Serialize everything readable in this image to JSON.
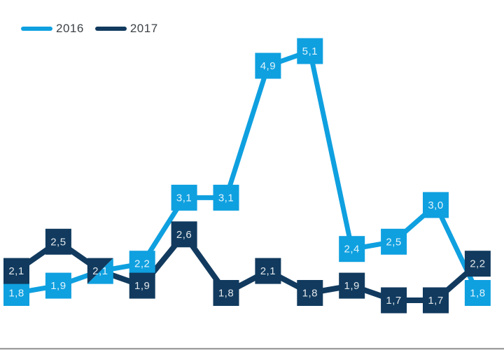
{
  "colors": {
    "series_2016": "#0FA0E0",
    "series_2017": "#113A5E",
    "point_label_text": "#FFFFFF",
    "legend_text": "#3D4247",
    "baseline": "#9F9F9F",
    "background": "#FFFFFF"
  },
  "legend": {
    "items": [
      {
        "label": "2016",
        "color": "#0FA0E0"
      },
      {
        "label": "2017",
        "color": "#113A5E"
      }
    ]
  },
  "chart_data": {
    "type": "line",
    "title": "",
    "xlabel": "",
    "ylabel": "",
    "grid": false,
    "x_axis_labels_visible": false,
    "y_axis_visible": false,
    "legend_position": "top-left",
    "num_points": 12,
    "decimal_separator": ",",
    "series": [
      {
        "name": "2016",
        "color": "#0FA0E0",
        "values": [
          1.8,
          1.9,
          2.1,
          2.2,
          3.1,
          3.1,
          4.9,
          5.1,
          2.4,
          2.5,
          3.0,
          1.8
        ],
        "labels": [
          "1,8",
          "1,9",
          "2,1",
          "2,2",
          "3,1",
          "3,1",
          "4,9",
          "5,1",
          "2,4",
          "2,5",
          "3,0",
          "1,8"
        ]
      },
      {
        "name": "2017",
        "color": "#113A5E",
        "values": [
          2.1,
          2.5,
          2.1,
          1.9,
          2.6,
          1.8,
          2.1,
          1.8,
          1.9,
          1.7,
          1.7,
          2.2
        ],
        "labels": [
          "2,1",
          "2,5",
          "2,1",
          "1,9",
          "2,6",
          "1,8",
          "2,1",
          "1,8",
          "1,9",
          "1,7",
          "1,7",
          "2,2"
        ]
      }
    ],
    "shared_point": {
      "index": 2,
      "value": 2.1,
      "label": "2,1",
      "note": "both series overlap at this point; marker is split diagonally (2017 top-left, 2016 bottom-right)"
    }
  }
}
